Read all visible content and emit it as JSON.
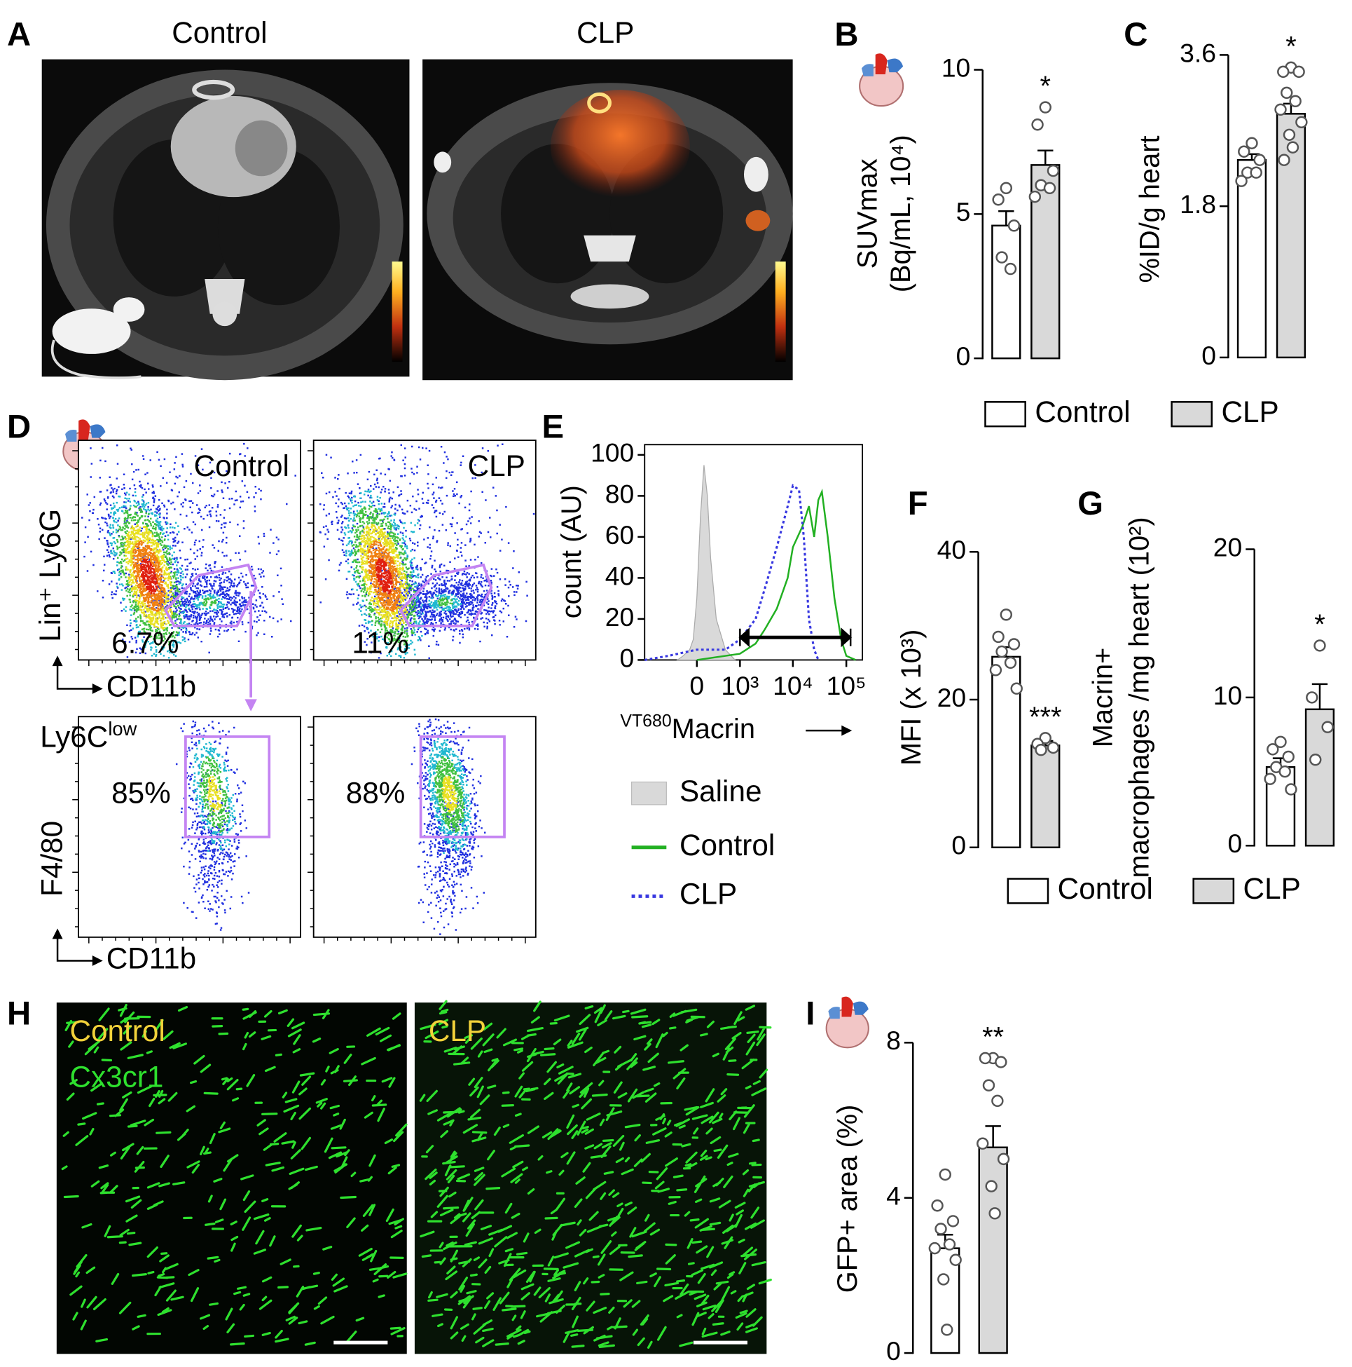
{
  "panel_labels": [
    "A",
    "B",
    "C",
    "D",
    "E",
    "F",
    "G",
    "H",
    "I"
  ],
  "groups": [
    {
      "name": "Control",
      "color": "#ffffff"
    },
    {
      "name": "CLP",
      "color": "#d9d9d9"
    }
  ],
  "panel_a": {
    "titles": [
      "Control",
      "CLP"
    ]
  },
  "panel_d": {
    "titles": [
      "Control",
      "CLP"
    ],
    "top_gates": [
      "6.7%",
      "11%"
    ],
    "bottom_gates": [
      "85%",
      "88%"
    ],
    "subset": {
      "name": "Ly6C",
      "sup": "low"
    },
    "top_ylabel": "Lin⁺ Ly6G",
    "bottom_ylabel": "F4/80",
    "xlabel": "CD11b"
  },
  "panel_h": {
    "titles": [
      "Control",
      "CLP"
    ],
    "stain": "Cx3cr1"
  },
  "chart_data": [
    {
      "type": "bar",
      "ylabel": [
        "SUVmax",
        "(Bq/mL, 10⁴)"
      ],
      "ylim": [
        0,
        10
      ],
      "yticks": [
        0,
        5,
        10
      ],
      "bars": [
        {
          "value": 4.6,
          "error": 0.5,
          "points": [
            5.9,
            5.5,
            4.6,
            3.5,
            3.1
          ]
        },
        {
          "value": 6.7,
          "error": 0.5,
          "points": [
            8.7,
            8.1,
            6.5,
            6.0,
            5.9,
            5.6
          ]
        }
      ],
      "annotation": "*"
    },
    {
      "type": "bar",
      "ylabel": [
        "%ID/g heart"
      ],
      "ylim": [
        0,
        3.6
      ],
      "yticks": [
        0,
        1.8,
        3.6
      ],
      "bars": [
        {
          "value": 2.35,
          "error": 0.07,
          "points": [
            2.55,
            2.45,
            2.35,
            2.2,
            2.2,
            2.1
          ]
        },
        {
          "value": 2.9,
          "error": 0.12,
          "points": [
            3.45,
            3.4,
            3.4,
            3.15,
            3.05,
            2.95,
            2.8,
            2.65,
            2.5,
            2.35
          ]
        }
      ],
      "annotation": "*"
    },
    {
      "type": "line",
      "ylabel": "count (AU)",
      "xlabel": {
        "sup": "VT680",
        "text": "Macrin"
      },
      "xlim": [
        -1500,
        200000
      ],
      "xticks": [
        {
          "value": 0,
          "label": "0"
        },
        {
          "value": 1000,
          "label": "10³"
        },
        {
          "value": 10000,
          "label": "10⁴"
        },
        {
          "value": 100000,
          "label": "10⁵"
        }
      ],
      "ylim": [
        0,
        105
      ],
      "yticks": [
        0,
        20,
        40,
        60,
        80,
        100
      ],
      "series": [
        {
          "name": "Saline",
          "color": "#d9d9d9",
          "fill": true,
          "x": [
            -300,
            -200,
            -100,
            -50,
            0,
            50,
            100,
            150,
            200,
            300,
            500,
            800
          ],
          "values": [
            0,
            2,
            5,
            10,
            30,
            70,
            95,
            80,
            50,
            20,
            5,
            0
          ]
        },
        {
          "name": "Control",
          "color": "#22b022",
          "x": [
            0,
            1000,
            2000,
            3000,
            5000,
            8000,
            10000,
            15000,
            20000,
            25000,
            30000,
            35000,
            45000,
            60000,
            80000,
            100000,
            150000
          ],
          "values": [
            0,
            3,
            8,
            15,
            25,
            40,
            55,
            65,
            75,
            60,
            78,
            82,
            60,
            30,
            10,
            2,
            0
          ]
        },
        {
          "name": "CLP",
          "color": "#3838e0",
          "dash": true,
          "x": [
            -1500,
            -500,
            0,
            500,
            1000,
            2000,
            3000,
            5000,
            8000,
            10000,
            13000,
            16000,
            20000,
            25000,
            30000
          ],
          "values": [
            0,
            2,
            5,
            5,
            10,
            20,
            35,
            55,
            75,
            85,
            83,
            60,
            20,
            5,
            0
          ]
        }
      ],
      "gate": {
        "x": [
          1000,
          120000
        ],
        "y": 11
      }
    },
    {
      "type": "bar",
      "ylabel": [
        "MFI (x 10³)"
      ],
      "ylim": [
        0,
        40
      ],
      "yticks": [
        0,
        20,
        40
      ],
      "bars": [
        {
          "value": 25.8,
          "error": 1.3,
          "points": [
            31.5,
            28.5,
            27.5,
            26.5,
            25,
            24,
            21.5
          ]
        },
        {
          "value": 13.8,
          "error": 0.6,
          "points": [
            14.8,
            14,
            13.5,
            13.2
          ]
        }
      ],
      "annotation": "***"
    },
    {
      "type": "bar",
      "ylabel": [
        "Macrin+",
        "macrophages /mg heart (10²)"
      ],
      "ylim": [
        0,
        20
      ],
      "yticks": [
        0,
        10,
        20
      ],
      "bars": [
        {
          "value": 5.3,
          "error": 0.6,
          "points": [
            7,
            6.5,
            6,
            5.3,
            5,
            4.5,
            3.8
          ]
        },
        {
          "value": 9.2,
          "error": 1.7,
          "points": [
            13.5,
            10,
            8,
            5.8
          ]
        }
      ],
      "annotation": "*"
    },
    {
      "type": "bar",
      "ylabel": [
        "GFP+ area (%)"
      ],
      "ylim": [
        0,
        8
      ],
      "yticks": [
        0,
        4,
        8
      ],
      "bars": [
        {
          "value": 2.7,
          "error": 0.35,
          "points": [
            4.6,
            3.8,
            3.4,
            3.2,
            2.8,
            2.7,
            2.4,
            1.9,
            0.6
          ]
        },
        {
          "value": 5.3,
          "error": 0.55,
          "points": [
            7.6,
            7.6,
            7.5,
            6.9,
            6.5,
            5.4,
            5.0,
            4.3,
            3.6
          ]
        }
      ],
      "annotation": "**"
    }
  ]
}
